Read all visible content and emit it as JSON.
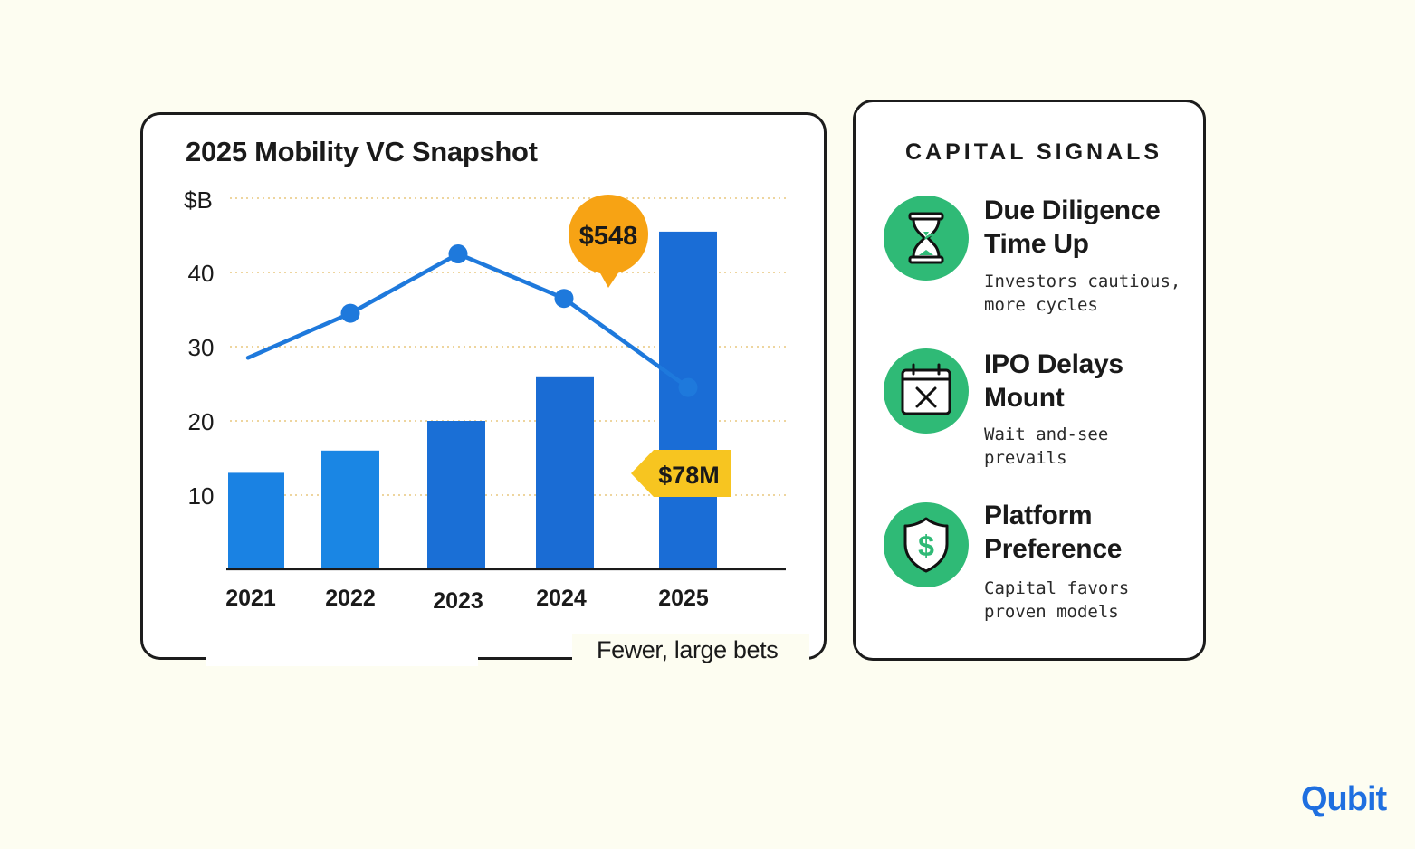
{
  "chart_data": {
    "type": "bar",
    "title": "2025 Mobility VC Snapshot",
    "ylabel": "$B",
    "ylim": [
      0,
      50
    ],
    "yticks": [
      10,
      20,
      30,
      40
    ],
    "categories": [
      "2021",
      "2022",
      "2023",
      "2024",
      "2025"
    ],
    "series": [
      {
        "values": [
          13,
          16,
          20,
          26,
          45.5
        ],
        "color": "#1b7ee0"
      }
    ],
    "line_series": [
      {
        "values": [
          28.5,
          34.5,
          42.5,
          36.5,
          24.5
        ],
        "color": "#1e79dc"
      }
    ],
    "grid": "horizontal-dotted",
    "annotations": [
      {
        "text": "$548",
        "style": "speech-bubble",
        "color": "#f7a314"
      },
      {
        "text": "$78M",
        "style": "tag",
        "color": "#f7c520"
      }
    ],
    "footnote": "Fewer, large bets"
  },
  "signals": {
    "heading": "CAPITAL SIGNALS",
    "items": [
      {
        "icon": "hourglass-icon",
        "title": "Due Diligence Time Up",
        "desc": "Investors cautious, more cycles"
      },
      {
        "icon": "calendar-x-icon",
        "title": "IPO Delays Mount",
        "desc": "Wait and-see prevails"
      },
      {
        "icon": "shield-dollar-icon",
        "title": "Platform Preference",
        "desc": "Capital favors proven models"
      }
    ],
    "accent": "#2fba76"
  },
  "brand": {
    "name": "Qubit",
    "color": "#1f6fe0"
  }
}
